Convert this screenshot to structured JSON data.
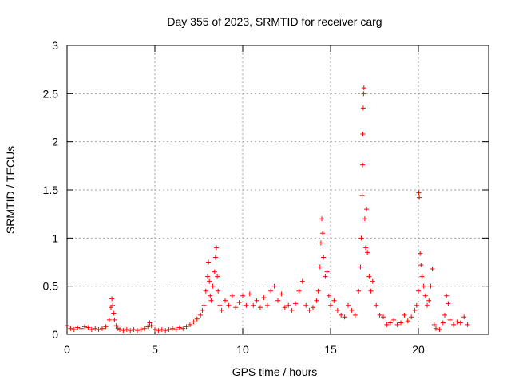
{
  "chart_data": {
    "type": "scatter",
    "title": "Day 355 of 2023, SRMTID for receiver carg",
    "xlabel": "GPS time / hours",
    "ylabel": "SRMTID / TECUs",
    "xlim": [
      0,
      24
    ],
    "ylim": [
      0,
      3
    ],
    "xticks": [
      0,
      5,
      10,
      15,
      20
    ],
    "xtick_labels": [
      "0",
      "5",
      "10",
      "15",
      "20"
    ],
    "yticks": [
      0,
      0.5,
      1,
      1.5,
      2,
      2.5,
      3
    ],
    "ytick_labels": [
      "0",
      "0.5",
      "1",
      "1.5",
      "2",
      "2.5",
      "3"
    ],
    "grid": true,
    "marker": "+",
    "series": [
      {
        "name": "SRMTID",
        "color": "#ff0000",
        "x": [
          0.0,
          0.2,
          0.4,
          0.6,
          0.8,
          1.0,
          1.2,
          1.4,
          1.6,
          1.8,
          2.0,
          2.2,
          2.4,
          2.5,
          2.55,
          2.6,
          2.65,
          2.7,
          2.8,
          2.9,
          3.0,
          3.2,
          3.4,
          3.6,
          3.8,
          4.0,
          4.2,
          4.4,
          4.6,
          4.7,
          4.8,
          5.0,
          5.2,
          5.4,
          5.6,
          5.8,
          6.0,
          6.2,
          6.4,
          6.6,
          6.8,
          7.0,
          7.2,
          7.4,
          7.6,
          7.7,
          7.8,
          7.9,
          8.0,
          8.05,
          8.1,
          8.15,
          8.2,
          8.3,
          8.4,
          8.45,
          8.5,
          8.55,
          8.6,
          8.7,
          8.8,
          9.0,
          9.2,
          9.4,
          9.6,
          9.8,
          10.0,
          10.2,
          10.4,
          10.6,
          10.8,
          11.0,
          11.2,
          11.4,
          11.6,
          11.8,
          12.0,
          12.2,
          12.4,
          12.6,
          12.8,
          13.0,
          13.2,
          13.4,
          13.6,
          13.8,
          14.0,
          14.2,
          14.3,
          14.4,
          14.45,
          14.5,
          14.55,
          14.6,
          14.7,
          14.8,
          14.9,
          15.0,
          15.2,
          15.4,
          15.6,
          15.8,
          16.0,
          16.2,
          16.4,
          16.6,
          16.7,
          16.75,
          16.8,
          16.82,
          16.84,
          16.86,
          16.88,
          16.9,
          16.95,
          17.0,
          17.05,
          17.1,
          17.2,
          17.3,
          17.4,
          17.6,
          17.8,
          18.0,
          18.2,
          18.4,
          18.6,
          18.8,
          19.0,
          19.2,
          19.4,
          19.6,
          19.8,
          19.9,
          20.0,
          20.02,
          20.05,
          20.1,
          20.15,
          20.2,
          20.3,
          20.4,
          20.5,
          20.6,
          20.7,
          20.8,
          20.9,
          21.0,
          21.2,
          21.4,
          21.5,
          21.6,
          21.7,
          21.8,
          22.0,
          22.2,
          22.4,
          22.6,
          22.8
        ],
        "y": [
          0.09,
          0.06,
          0.05,
          0.07,
          0.06,
          0.08,
          0.07,
          0.05,
          0.06,
          0.05,
          0.06,
          0.08,
          0.15,
          0.28,
          0.37,
          0.3,
          0.22,
          0.15,
          0.09,
          0.06,
          0.05,
          0.04,
          0.05,
          0.04,
          0.05,
          0.04,
          0.05,
          0.06,
          0.08,
          0.12,
          0.09,
          0.05,
          0.04,
          0.05,
          0.04,
          0.05,
          0.06,
          0.05,
          0.07,
          0.06,
          0.08,
          0.1,
          0.13,
          0.16,
          0.2,
          0.25,
          0.3,
          0.45,
          0.6,
          0.75,
          0.55,
          0.4,
          0.35,
          0.5,
          0.65,
          0.8,
          0.9,
          0.6,
          0.45,
          0.3,
          0.25,
          0.35,
          0.3,
          0.4,
          0.28,
          0.33,
          0.4,
          0.3,
          0.42,
          0.3,
          0.35,
          0.28,
          0.38,
          0.3,
          0.45,
          0.5,
          0.35,
          0.42,
          0.28,
          0.3,
          0.25,
          0.32,
          0.45,
          0.55,
          0.3,
          0.25,
          0.28,
          0.35,
          0.45,
          0.7,
          0.95,
          1.2,
          1.05,
          0.8,
          0.6,
          0.65,
          0.4,
          0.3,
          0.35,
          0.25,
          0.2,
          0.18,
          0.3,
          0.25,
          0.2,
          0.45,
          0.7,
          1.0,
          1.44,
          1.76,
          2.08,
          2.35,
          2.5,
          2.56,
          1.2,
          0.9,
          1.3,
          0.85,
          0.6,
          0.45,
          0.55,
          0.3,
          0.2,
          0.18,
          0.1,
          0.12,
          0.15,
          0.1,
          0.12,
          0.2,
          0.14,
          0.18,
          0.25,
          0.3,
          0.45,
          1.47,
          1.42,
          0.84,
          0.72,
          0.6,
          0.5,
          0.4,
          0.3,
          0.35,
          0.5,
          0.68,
          0.1,
          0.06,
          0.05,
          0.12,
          0.2,
          0.4,
          0.32,
          0.15,
          0.1,
          0.13,
          0.12,
          0.18,
          0.1
        ]
      }
    ]
  }
}
